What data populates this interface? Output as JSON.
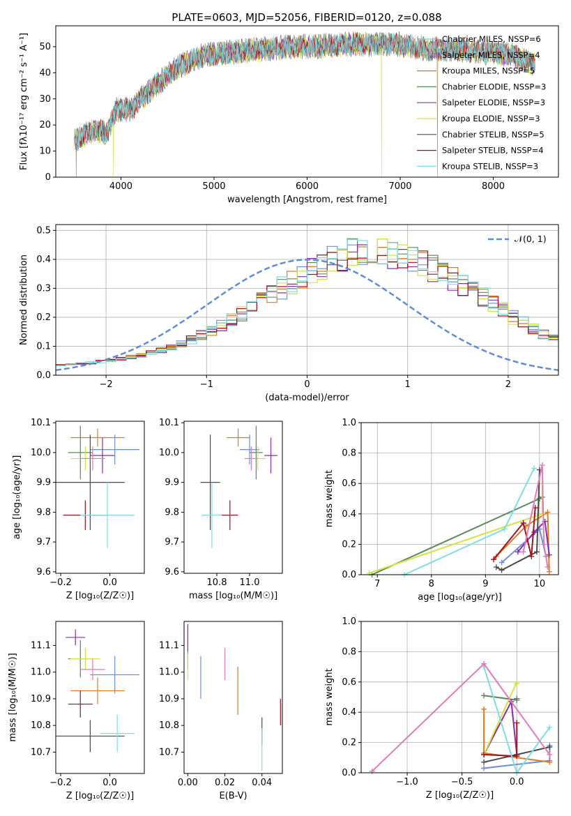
{
  "title": "PLATE=0603, MJD=52056, FIBERID=0120, z=0.088",
  "colors": {
    "legend": [
      "#7fd4d6",
      "#9a9a9a",
      "#d4781e",
      "#4f8f4f",
      "#8b2bb0",
      "#d2e63a",
      "#4a4a4a",
      "#a3121d",
      "#7fdde6"
    ],
    "series": [
      "#6b8ee0",
      "#e07a1e",
      "#5a8a5a",
      "#8b2bb0",
      "#d2e63a",
      "#4a4a4a",
      "#a3121d",
      "#7fdde6",
      "#e07ab8"
    ],
    "gauss": "#5b8dd9"
  },
  "chart_data": [
    {
      "type": "line",
      "title": "PLATE=0603, MJD=52056, FIBERID=0120, z=0.088",
      "xlabel": "wavelength [Angstrom, rest frame]",
      "ylabel": "Flux [fλ10⁻¹⁷ erg cm⁻² s⁻¹ A⁻¹]",
      "xlim": [
        3300,
        8700
      ],
      "ylim": [
        0,
        58
      ],
      "xticks": [
        "4000",
        "5000",
        "6000",
        "7000",
        "8000"
      ],
      "yticks": [
        "0",
        "10",
        "20",
        "30",
        "40",
        "50"
      ],
      "grid": false,
      "legend_placement": "top-right",
      "legend": [
        "Chabrier MILES, NSSP=6",
        "Salpeter MILES, NSSP=4",
        "Kroupa MILES, NSSP=5",
        "Chabrier ELODIE, NSSP=3",
        "Salpeter ELODIE, NSSP=3",
        "Kroupa ELODIE, NSSP=3",
        "Chabrier STELIB, NSSP=5",
        "Salpeter STELIB, NSSP=4",
        "Kroupa STELIB, NSSP=3"
      ],
      "spectrum_continuum": {
        "x": [
          3500,
          3700,
          3850,
          3950,
          4100,
          4300,
          4600,
          4900,
          5200,
          5500,
          5800,
          6100,
          6400,
          6700,
          7000,
          7300,
          7600,
          7900,
          8200,
          8450
        ],
        "y": [
          14,
          18,
          17,
          26,
          26,
          33,
          42,
          47,
          48,
          49,
          50,
          50,
          51,
          51,
          51,
          49,
          49,
          48,
          47,
          43
        ]
      },
      "dropouts": [
        3520,
        3920,
        6800,
        7400
      ]
    },
    {
      "type": "bar",
      "xlabel": "(data-model)/error",
      "ylabel": "Normed distribution",
      "xlim": [
        -2.5,
        2.5
      ],
      "ylim": [
        0,
        0.52
      ],
      "xticks": [
        "−2",
        "−1",
        "0",
        "1",
        "2"
      ],
      "yticks": [
        "0.0",
        "0.1",
        "0.2",
        "0.3",
        "0.4",
        "0.5"
      ],
      "grid": true,
      "legend_placement": "top-right",
      "legend": [
        "𝒩(0, 1)"
      ],
      "reference_curve": "normal(0,1)",
      "bin_width": 0.1,
      "bin_start": -2.5,
      "envelope": [
        0.02,
        0.022,
        0.025,
        0.028,
        0.032,
        0.036,
        0.041,
        0.047,
        0.054,
        0.062,
        0.071,
        0.082,
        0.094,
        0.108,
        0.123,
        0.139,
        0.157,
        0.176,
        0.196,
        0.217,
        0.24,
        0.262,
        0.285,
        0.307,
        0.328,
        0.348,
        0.366,
        0.381,
        0.393,
        0.402,
        0.407,
        0.41,
        0.409,
        0.404,
        0.396,
        0.385,
        0.371,
        0.355,
        0.337,
        0.317,
        0.296,
        0.274,
        0.252,
        0.229,
        0.207,
        0.186,
        0.165,
        0.146,
        0.128,
        0.111
      ]
    },
    {
      "type": "scatter",
      "xlabel": "Z [log₁₀(Z/Z☉)]",
      "ylabel": "age  [log₁₀(age/yr)]",
      "xlim": [
        -0.22,
        0.14
      ],
      "ylim": [
        9.595,
        10.105
      ],
      "xticks": [
        "−0.2",
        "0.0"
      ],
      "yticks": [
        "9.6",
        "9.7",
        "9.8",
        "9.9",
        "10.0",
        "10.1"
      ],
      "grid": false,
      "points": [
        {
          "x": 0.02,
          "xerr": 0.1,
          "y": 10.01,
          "yerr": 0.05
        },
        {
          "x": -0.05,
          "xerr": 0.11,
          "y": 10.05,
          "yerr": 0.03
        },
        {
          "x": -0.12,
          "xerr": 0.05,
          "y": 10.0,
          "yerr": 0.09
        },
        {
          "x": -0.03,
          "xerr": 0.05,
          "y": 9.99,
          "yerr": 0.06
        },
        {
          "x": -0.1,
          "xerr": 0.06,
          "y": 9.98,
          "yerr": 0.04
        },
        {
          "x": -0.08,
          "xerr": 0.14,
          "y": 9.9,
          "yerr": 0.16
        },
        {
          "x": -0.1,
          "xerr": 0.09,
          "y": 9.79,
          "yerr": 0.05
        },
        {
          "x": -0.01,
          "xerr": 0.11,
          "y": 9.79,
          "yerr": 0.11
        },
        {
          "x": -0.07,
          "xerr": 0.05,
          "y": 9.98,
          "yerr": 0.04
        }
      ]
    },
    {
      "type": "scatter",
      "xlabel": "mass [log₁₀(M/M☉)]",
      "ylabel": "",
      "xlim": [
        10.6,
        11.2
      ],
      "ylim": [
        9.595,
        10.105
      ],
      "xticks": [
        "10.8",
        "11.0"
      ],
      "yticks": [
        "9.6",
        "9.7",
        "9.8",
        "9.9",
        "10.0",
        "10.1"
      ],
      "grid": false,
      "points": [
        {
          "x": 11.0,
          "xerr": 0.06,
          "y": 10.01,
          "yerr": 0.05
        },
        {
          "x": 10.93,
          "xerr": 0.07,
          "y": 10.05,
          "yerr": 0.03
        },
        {
          "x": 11.04,
          "xerr": 0.04,
          "y": 10.0,
          "yerr": 0.09
        },
        {
          "x": 11.13,
          "xerr": 0.04,
          "y": 9.99,
          "yerr": 0.06
        },
        {
          "x": 11.05,
          "xerr": 0.05,
          "y": 9.98,
          "yerr": 0.04
        },
        {
          "x": 10.76,
          "xerr": 0.06,
          "y": 9.9,
          "yerr": 0.16
        },
        {
          "x": 10.88,
          "xerr": 0.05,
          "y": 9.79,
          "yerr": 0.05
        },
        {
          "x": 10.77,
          "xerr": 0.06,
          "y": 9.79,
          "yerr": 0.11
        },
        {
          "x": 11.01,
          "xerr": 0.04,
          "y": 9.98,
          "yerr": 0.04
        }
      ]
    },
    {
      "type": "line",
      "xlabel": "age  [log₁₀(age/yr)]",
      "ylabel": "mass weight",
      "xlim": [
        6.7,
        10.35
      ],
      "ylim": [
        0,
        1.0
      ],
      "xticks": [
        "7",
        "8",
        "9",
        "10"
      ],
      "yticks": [
        "0.0",
        "0.2",
        "0.4",
        "0.6",
        "0.8",
        "1.0"
      ],
      "grid": true,
      "series": [
        {
          "x": [
            9.3,
            10.0,
            10.12
          ],
          "y": [
            0.08,
            0.3,
            0.12
          ]
        },
        {
          "x": [
            9.2,
            9.75,
            10.15,
            10.18
          ],
          "y": [
            0.12,
            0.32,
            0.41,
            0.02
          ]
        },
        {
          "x": [
            6.9,
            10.0,
            10.05
          ],
          "y": [
            0.0,
            0.5,
            0.51
          ]
        },
        {
          "x": [
            9.6,
            9.9,
            10.1,
            10.18
          ],
          "y": [
            0.15,
            0.28,
            0.35,
            0.13
          ]
        },
        {
          "x": [
            6.85,
            10.05,
            10.05
          ],
          "y": [
            0.01,
            0.4,
            0.6
          ]
        },
        {
          "x": [
            9.2,
            9.3,
            9.95,
            10.0
          ],
          "y": [
            0.05,
            0.03,
            0.15,
            0.69
          ]
        },
        {
          "x": [
            9.15,
            9.7,
            9.85,
            9.92
          ],
          "y": [
            0.1,
            0.34,
            0.12,
            0.44
          ]
        },
        {
          "x": [
            7.5,
            9.35,
            9.9
          ],
          "y": [
            0.0,
            0.3,
            0.7
          ]
        },
        {
          "x": [
            9.7,
            10.05,
            10.08,
            10.15
          ],
          "y": [
            0.15,
            0.72,
            0.2,
            0.05
          ]
        }
      ]
    },
    {
      "type": "scatter",
      "xlabel": "Z [log₁₀(Z/Z☉)]",
      "ylabel": "mass [log₁₀(M/M☉)]",
      "xlim": [
        -0.22,
        0.14
      ],
      "ylim": [
        10.62,
        11.19
      ],
      "xticks": [
        "−0.2",
        "0.0"
      ],
      "yticks": [
        "10.7",
        "10.8",
        "10.9",
        "11.0",
        "11.1"
      ],
      "grid": false,
      "points": [
        {
          "x": 0.02,
          "xerr": 0.1,
          "y": 10.99,
          "yerr": 0.07
        },
        {
          "x": -0.05,
          "xerr": 0.11,
          "y": 10.93,
          "yerr": 0.05
        },
        {
          "x": -0.12,
          "xerr": 0.05,
          "y": 11.05,
          "yerr": 0.07
        },
        {
          "x": -0.14,
          "xerr": 0.04,
          "y": 11.13,
          "yerr": 0.03
        },
        {
          "x": -0.1,
          "xerr": 0.06,
          "y": 11.05,
          "yerr": 0.04
        },
        {
          "x": -0.08,
          "xerr": 0.14,
          "y": 10.76,
          "yerr": 0.06
        },
        {
          "x": -0.12,
          "xerr": 0.05,
          "y": 10.88,
          "yerr": 0.05
        },
        {
          "x": 0.03,
          "xerr": 0.07,
          "y": 10.77,
          "yerr": 0.07
        },
        {
          "x": -0.07,
          "xerr": 0.05,
          "y": 11.01,
          "yerr": 0.04
        }
      ]
    },
    {
      "type": "scatter",
      "xlabel": "E(B-V)",
      "ylabel": "",
      "xlim": [
        -0.002,
        0.051
      ],
      "ylim": [
        10.62,
        11.19
      ],
      "xticks": [
        "0.00",
        "0.02",
        "0.04"
      ],
      "yticks": [
        "10.7",
        "10.8",
        "10.9",
        "11.0",
        "11.1"
      ],
      "grid": false,
      "points": [
        {
          "x": 0.007,
          "y": 10.98,
          "yerr": 0.08
        },
        {
          "x": 0.027,
          "y": 10.93,
          "yerr": 0.09
        },
        {
          "x": 0.0,
          "y": 11.05,
          "yerr": 0.04
        },
        {
          "x": 0.0,
          "y": 11.13,
          "yerr": 0.05
        },
        {
          "x": 0.0,
          "y": 11.02,
          "yerr": 0.05
        },
        {
          "x": 0.04,
          "y": 10.78,
          "yerr": 0.05
        },
        {
          "x": 0.05,
          "y": 10.85,
          "yerr": 0.05
        },
        {
          "x": 0.04,
          "y": 10.71,
          "yerr": 0.08
        },
        {
          "x": 0.02,
          "y": 11.03,
          "yerr": 0.06
        }
      ]
    },
    {
      "type": "line",
      "xlabel": "Z [log₁₀(Z/Z☉)]",
      "ylabel": "mass weight",
      "xlim": [
        -1.42,
        0.38
      ],
      "ylim": [
        0,
        1.0
      ],
      "xticks": [
        "−1.0",
        "−0.5",
        "0.0"
      ],
      "yticks": [
        "0.0",
        "0.2",
        "0.4",
        "0.6",
        "0.8",
        "1.0"
      ],
      "grid": true,
      "series": [
        {
          "x": [
            -0.3,
            0.3,
            0.3
          ],
          "y": [
            0.03,
            0.08,
            0.18
          ]
        },
        {
          "x": [
            -0.3,
            -0.3,
            0.3
          ],
          "y": [
            0.42,
            0.13,
            0.07
          ]
        },
        {
          "x": [
            -0.3,
            0.0,
            0.0
          ],
          "y": [
            0.51,
            0.48,
            0.49
          ]
        },
        {
          "x": [
            -0.3,
            -0.05,
            0.0
          ],
          "y": [
            0.12,
            0.47,
            0.12
          ]
        },
        {
          "x": [
            -0.3,
            0.0,
            0.0
          ],
          "y": [
            0.12,
            0.6,
            0.59
          ]
        },
        {
          "x": [
            -0.3,
            0.0,
            0.3
          ],
          "y": [
            0.07,
            0.12,
            0.17
          ]
        },
        {
          "x": [
            -0.3,
            0.0,
            0.0
          ],
          "y": [
            0.12,
            0.11,
            0.33
          ]
        },
        {
          "x": [
            -0.3,
            0.0,
            0.3
          ],
          "y": [
            0.7,
            0.0,
            0.3
          ]
        },
        {
          "x": [
            -1.32,
            -0.3,
            0.3
          ],
          "y": [
            0.01,
            0.72,
            0.12
          ]
        }
      ]
    }
  ]
}
